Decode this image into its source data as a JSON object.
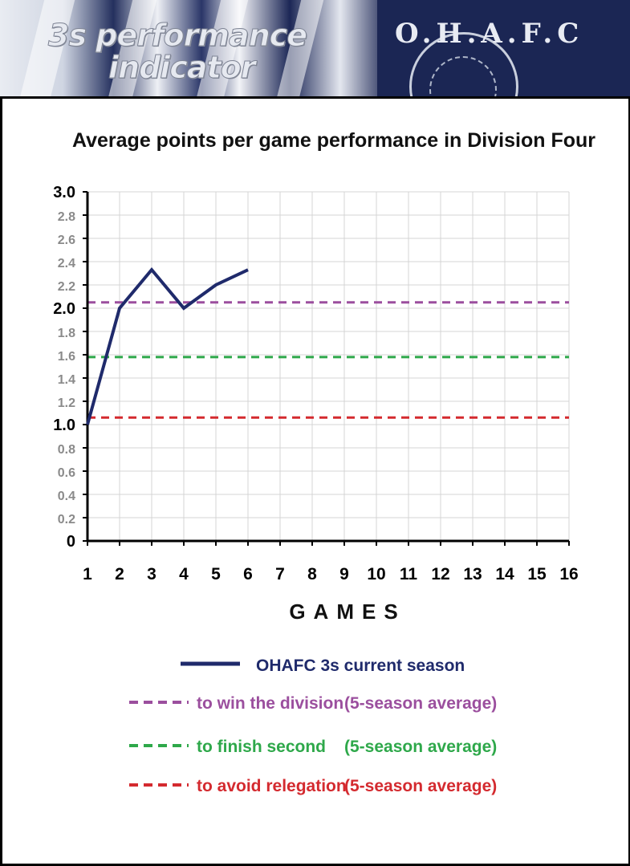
{
  "banner": {
    "line1": "3s performance",
    "line2": "indicator",
    "crest_text": "O.H.A.F.C"
  },
  "chart_data": {
    "type": "line",
    "title": "Average points per game performance in Division Four",
    "xlabel": "GAMES",
    "ylabel": "",
    "xlim": [
      1,
      16
    ],
    "ylim": [
      0,
      3.0
    ],
    "x_ticks": [
      "1",
      "2",
      "3",
      "4",
      "5",
      "6",
      "7",
      "8",
      "9",
      "10",
      "11",
      "12",
      "13",
      "14",
      "15",
      "16"
    ],
    "y_ticks": [
      "0",
      "0.2",
      "0.4",
      "0.6",
      "0.8",
      "1.0",
      "1.2",
      "1.4",
      "1.6",
      "1.8",
      "2.0",
      "2.2",
      "2.4",
      "2.6",
      "2.8",
      "3.0"
    ],
    "grid": true,
    "series": [
      {
        "name": "OHAFC 3s current season",
        "style": "solid",
        "color": "#1f2a6b",
        "x": [
          1,
          2,
          3,
          4,
          5,
          6
        ],
        "y": [
          1.0,
          2.0,
          2.33,
          2.0,
          2.2,
          2.33
        ]
      }
    ],
    "reference_lines": [
      {
        "label": "to win the division",
        "note": "(5-season average)",
        "value": 2.05,
        "color": "#9b4f9e",
        "style": "dashed"
      },
      {
        "label": "to finish second",
        "note": "(5-season average)",
        "value": 1.58,
        "color": "#2ea84a",
        "style": "dashed"
      },
      {
        "label": "to avoid relegation",
        "note": "(5-season average)",
        "value": 1.06,
        "color": "#d42a2f",
        "style": "dashed"
      }
    ],
    "legend_position": "bottom"
  }
}
